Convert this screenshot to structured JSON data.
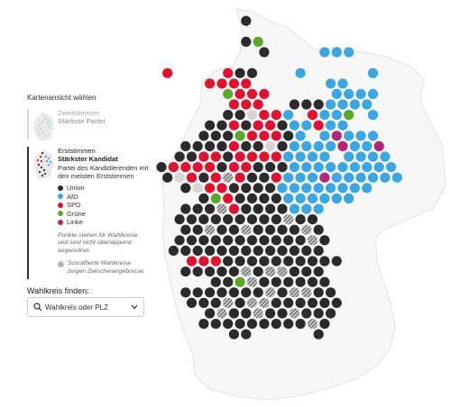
{
  "sidebar": {
    "title": "Kartenansicht wählen",
    "modes": [
      {
        "line1": "Zweitstimmen",
        "line2": "Stärkste Partei",
        "active": false
      },
      {
        "line1": "Erststimmen",
        "line2": "Stärkster Kandidat",
        "active": true,
        "description": "Partei des Kandidierenden mit den meisten Erststimmen"
      }
    ],
    "legend": [
      {
        "label": "Union",
        "color": "#2b2b2b"
      },
      {
        "label": "AfD",
        "color": "#3aa6e3"
      },
      {
        "label": "SPD",
        "color": "#e3102f"
      },
      {
        "label": "Grüne",
        "color": "#5aa82a"
      },
      {
        "label": "Linke",
        "color": "#b8237a"
      }
    ],
    "note": "Punkte stehen für Wahlkreise und sind nicht überlappend angeordnet.",
    "hatch_note": "Schraffierte Wahlkreise zeigen Zwischenergebnisse."
  },
  "finder": {
    "label": "Wahlkreis finden:",
    "placeholder": "Wahlkreis oder PLZ"
  },
  "colors": {
    "U": "#2b2b2b",
    "A": "#3aa6e3",
    "S": "#e3102f",
    "G": "#5aa82a",
    "L": "#b8237a",
    "H": "hatch",
    "W": "#d6d6d6"
  },
  "map_rows": [
    "...................................",
    "...................................",
    ".................U.................",
    "...................................",
    ".................UG................",
    "..................U....AAA.........",
    "...................................",
    "..........S....SUU...A.....A.......",
    "..............SSSS......AA.........",
    "...............GSSS.....AAAA.......",
    "................SSS..UUUAAAA.......",
    "...............UUWSSA.SAAG.A.......",
    "..............UUSUSSUAASAA.........",
    ".............UUUGSSSUA.ALAAA.......",
    "............UUUUSUUWUAAAALAAL......",
    "...........UUSSUSSSSAAAA.AAAA......",
    "..........USSSSUSSUUUAAAAAAAAA.....",
    "..........UWSUSHSUUSAAALAAAAAA.....",
    "............UWSSUUUUAAAAAAAA.......",
    ".............UGSUUUUAAAAAA.........",
    "............UUUHSUUUUAAA...........",
    "...........UUUUUUUUUHUU............",
    "............UUHUUHUUUUHU...........",
    "...........UUUUUUUUUUUHU...........",
    "...........UUUUUUUUUUUUU...........",
    "............SSSUUUUUUUUUU..........",
    "............UUUUUHUHHUUU...........",
    "..............UUGHUUUUUU...........",
    "............UUUUUUUHUHHUU..........",
    "............UUUHUHHUUUUUU..........",
    "..............UHUUHUUHUUU..........",
    ".............UUUUUUUUUHU...........",
    "................UU.....U..........."
  ]
}
